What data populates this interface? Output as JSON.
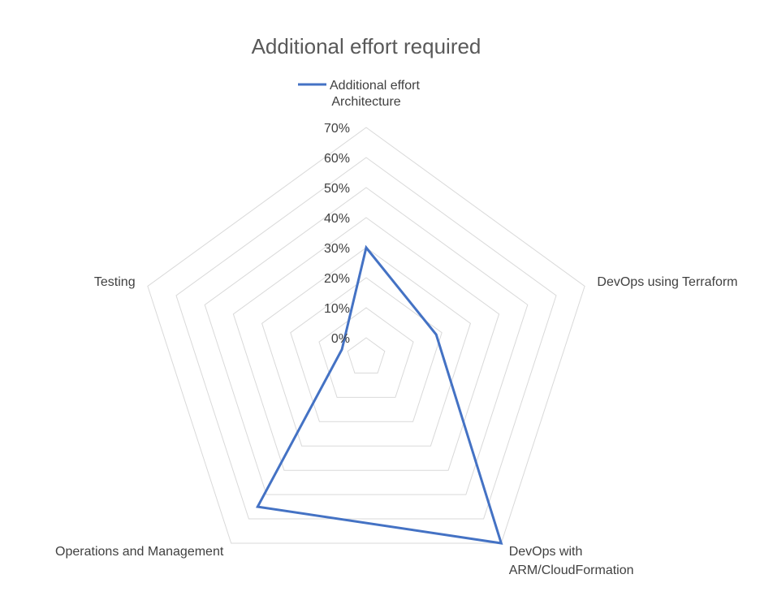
{
  "chart_data": {
    "type": "radar",
    "title": "Additional effort required",
    "legend_position": "top",
    "categories": [
      "Architecture",
      "DevOps using Terraform",
      "DevOps with ARM/CloudFormation",
      "Operations and Management",
      "Testing"
    ],
    "category_label_lines": [
      [
        "Architecture"
      ],
      [
        "DevOps using Terraform"
      ],
      [
        "DevOps with",
        "ARM/CloudFormation"
      ],
      [
        "Operations and Management"
      ],
      [
        "Testing"
      ]
    ],
    "tick_labels": [
      "0%",
      "10%",
      "20%",
      "30%",
      "40%",
      "50%",
      "60%",
      "70%"
    ],
    "range": [
      0,
      0.7
    ],
    "grid": true,
    "series": [
      {
        "name": "Additional effort",
        "color": "#4472C4",
        "values": [
          0.3,
          0.18,
          0.7,
          0.55,
          0.02
        ]
      }
    ]
  }
}
